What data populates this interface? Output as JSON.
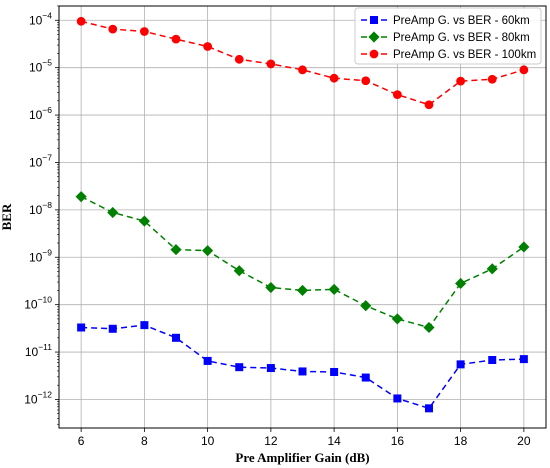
{
  "chart_data": {
    "type": "line",
    "title": "",
    "xlabel": "Pre Amplifier Gain (dB)",
    "ylabel": "BER",
    "yscale": "log",
    "xlim": [
      5.3,
      20.7
    ],
    "ylim": [
      2.5e-13,
      0.0002
    ],
    "grid": true,
    "legend_position": "top-right",
    "x_ticks": [
      6,
      8,
      10,
      12,
      14,
      16,
      18,
      20
    ],
    "y_ticks": [
      {
        "value": 1e-12,
        "base": "10",
        "exp": "−12"
      },
      {
        "value": 1e-11,
        "base": "10",
        "exp": "−11"
      },
      {
        "value": 1e-10,
        "base": "10",
        "exp": "−10"
      },
      {
        "value": 1e-09,
        "base": "10",
        "exp": "−9"
      },
      {
        "value": 1e-08,
        "base": "10",
        "exp": "−8"
      },
      {
        "value": 1e-07,
        "base": "10",
        "exp": "−7"
      },
      {
        "value": 1e-06,
        "base": "10",
        "exp": "−6"
      },
      {
        "value": 1e-05,
        "base": "10",
        "exp": "−5"
      },
      {
        "value": 0.0001,
        "base": "10",
        "exp": "−4"
      }
    ],
    "x": [
      6,
      7,
      8,
      9,
      10,
      11,
      12,
      13,
      14,
      15,
      16,
      17,
      18,
      19,
      20
    ],
    "series": [
      {
        "name": "PreAmp G. vs BER - 60km",
        "color": "#0000ff",
        "marker": "square",
        "values": [
          3.3e-11,
          3.1e-11,
          3.7e-11,
          2e-11,
          6.5e-12,
          4.8e-12,
          4.6e-12,
          3.9e-12,
          3.8e-12,
          2.9e-12,
          1.05e-12,
          6.5e-13,
          5.5e-12,
          6.8e-12,
          7.1e-12
        ]
      },
      {
        "name": "PreAmp G. vs BER - 80km",
        "color": "#008000",
        "marker": "diamond",
        "values": [
          1.9e-08,
          8.8e-09,
          5.8e-09,
          1.45e-09,
          1.38e-09,
          5.2e-10,
          2.3e-10,
          2e-10,
          2.1e-10,
          9.5e-11,
          5e-11,
          3.3e-11,
          2.8e-10,
          5.7e-10,
          1.65e-09
        ]
      },
      {
        "name": "PreAmp G. vs BER - 100km",
        "color": "#ff0000",
        "marker": "circle",
        "values": [
          9.5e-05,
          6.5e-05,
          5.8e-05,
          4e-05,
          2.8e-05,
          1.5e-05,
          1.2e-05,
          9e-06,
          6e-06,
          5.3e-06,
          2.7e-06,
          1.65e-06,
          5.2e-06,
          5.7e-06,
          9e-06
        ]
      }
    ]
  }
}
